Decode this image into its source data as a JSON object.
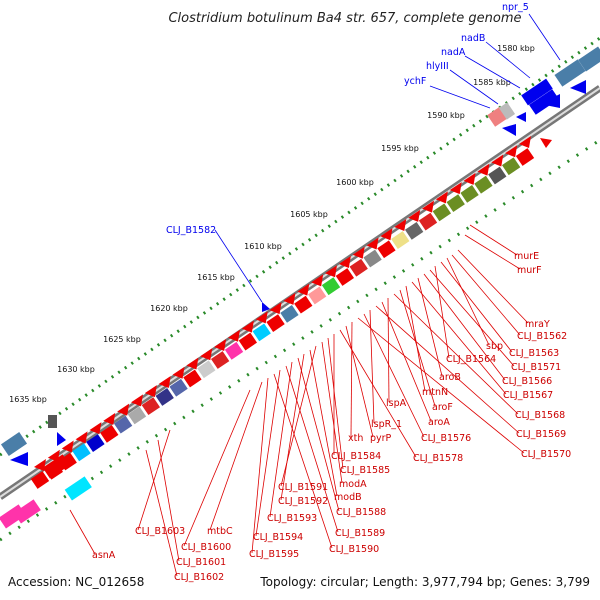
{
  "title": "Clostridium botulinum Ba4 str. 657, complete genome",
  "footer": {
    "accession": "Accession: NC_012658",
    "summary": "Topology: circular; Length: 3,977,794 bp; Genes: 3,799"
  },
  "ticks": [
    "1580 kbp",
    "1585 kbp",
    "1590 kbp",
    "1595 kbp",
    "1600 kbp",
    "1605 kbp",
    "1610 kbp",
    "1615 kbp",
    "1620 kbp",
    "1625 kbp",
    "1630 kbp",
    "1635 kbp"
  ],
  "colors": {
    "forward": "#0000ee",
    "reverse": "#ee0000",
    "backbone": "#888888",
    "gc_dots": "#2a8a2a"
  },
  "labels_forward": [
    "npr_5",
    "nadB",
    "nadA",
    "hlyIII",
    "ychF",
    "CLJ_B1582"
  ],
  "labels_reverse": [
    "murE",
    "murF",
    "mraY",
    "CLJ_B1562",
    "sbp",
    "CLJ_B1563",
    "CLJ_B1564",
    "CLJ_B1571",
    "CLJ_B1566",
    "aroB",
    "CLJ_B1567",
    "mtnN",
    "aroF",
    "CLJ_B1568",
    "lspA",
    "aroA",
    "CLJ_B1569",
    "lspR_1",
    "CLJ_B1576",
    "CLJ_B1570",
    "xth",
    "pyrP",
    "CLJ_B1578",
    "CLJ_B1584",
    "CLJ_B1585",
    "modA",
    "CLJ_B1591",
    "modB",
    "CLJ_B1592",
    "CLJ_B1588",
    "CLJ_B1593",
    "CLJ_B1589",
    "CLJ_B1594",
    "CLJ_B1590",
    "CLJ_B1595",
    "mtbC",
    "CLJ_B1600",
    "CLJ_B1603",
    "CLJ_B1601",
    "CLJ_B1602",
    "asnA"
  ]
}
